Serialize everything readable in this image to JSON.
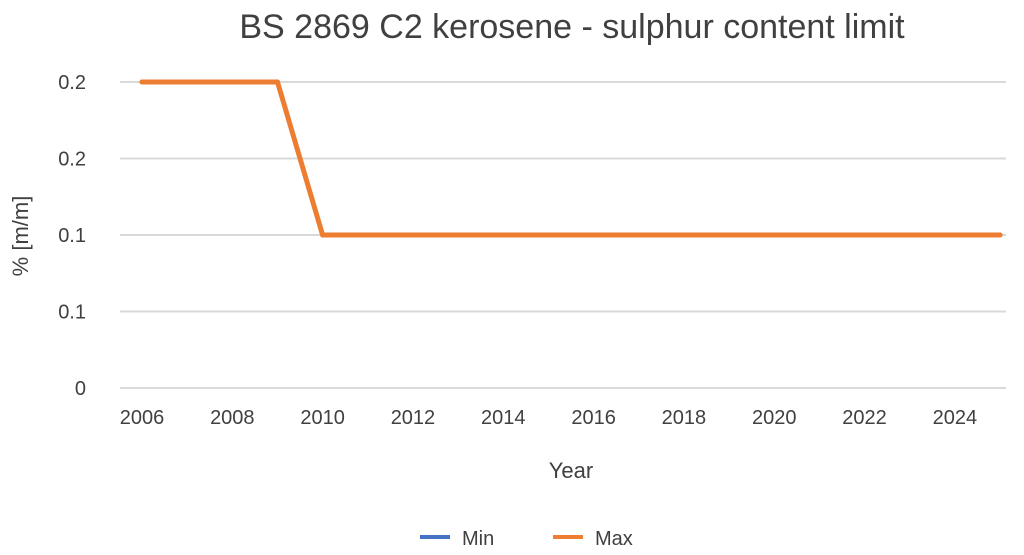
{
  "chart_data": {
    "type": "line",
    "title": "BS 2869 C2 kerosene - sulphur content limit",
    "xlabel": "Year",
    "ylabel": "% [m/m]",
    "xlim": [
      2006,
      2025
    ],
    "ylim": [
      0,
      0.2
    ],
    "x_ticks": [
      "2006",
      "2008",
      "2010",
      "2012",
      "2014",
      "2016",
      "2018",
      "2020",
      "2022",
      "2024"
    ],
    "y_ticks": [
      {
        "value": 0,
        "label": "0"
      },
      {
        "value": 0.05,
        "label": "0.1"
      },
      {
        "value": 0.1,
        "label": "0.1"
      },
      {
        "value": 0.15,
        "label": "0.2"
      },
      {
        "value": 0.2,
        "label": "0.2"
      }
    ],
    "grid": true,
    "legend_position": "bottom",
    "series": [
      {
        "name": "Min",
        "color": "#4472c4",
        "points": []
      },
      {
        "name": "Max",
        "color": "#ed7d31",
        "points": [
          {
            "x": 2006,
            "y": 0.2
          },
          {
            "x": 2009,
            "y": 0.2
          },
          {
            "x": 2010,
            "y": 0.1
          },
          {
            "x": 2025,
            "y": 0.1
          }
        ]
      }
    ]
  }
}
